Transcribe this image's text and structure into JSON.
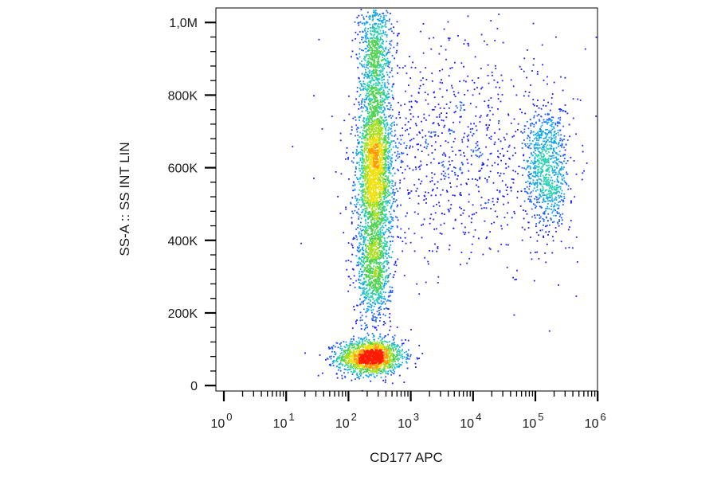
{
  "chart_data": {
    "type": "scatter",
    "xlabel": "CD177 APC",
    "ylabel": "SS-A :: SS INT LIN",
    "x_scale": "log",
    "x_ticks": [
      {
        "base": "10",
        "exp": "0"
      },
      {
        "base": "10",
        "exp": "1"
      },
      {
        "base": "10",
        "exp": "2"
      },
      {
        "base": "10",
        "exp": "3"
      },
      {
        "base": "10",
        "exp": "4"
      },
      {
        "base": "10",
        "exp": "5"
      },
      {
        "base": "10",
        "exp": "6"
      }
    ],
    "y_ticks": [
      {
        "value": 0,
        "label": "0"
      },
      {
        "value": 200000,
        "label": "200K"
      },
      {
        "value": 400000,
        "label": "400K"
      },
      {
        "value": 600000,
        "label": "600K"
      },
      {
        "value": 800000,
        "label": "800K"
      },
      {
        "value": 1000000,
        "label": "1,0M"
      }
    ],
    "y_range": [
      -15000,
      1040000
    ],
    "color_scale": "density (blue-cyan-green-yellow-red)",
    "populations": [
      {
        "center_x": 220,
        "center_y": 80000,
        "sd_log10x": 0.26,
        "sd_y": 24000,
        "count": 1600,
        "density": "highest"
      },
      {
        "center_x": 260,
        "center_y": 600000,
        "sd_log10x": 0.14,
        "sd_y": 120000,
        "count": 2600,
        "density": "high"
      },
      {
        "center_x": 250,
        "center_y": 320000,
        "sd_log10x": 0.14,
        "sd_y": 80000,
        "count": 900,
        "density": "medium"
      },
      {
        "center_x": 260,
        "center_y": 920000,
        "sd_log10x": 0.13,
        "sd_y": 70000,
        "count": 700,
        "density": "medium"
      },
      {
        "center_x": 150000,
        "center_y": 600000,
        "sd_log10x": 0.18,
        "sd_y": 90000,
        "count": 900,
        "density": "medium"
      },
      {
        "center_x": 5000,
        "center_y": 650000,
        "sd_log10x": 0.8,
        "sd_y": 160000,
        "count": 900,
        "density": "low"
      }
    ],
    "grid": false,
    "legend": "none"
  }
}
